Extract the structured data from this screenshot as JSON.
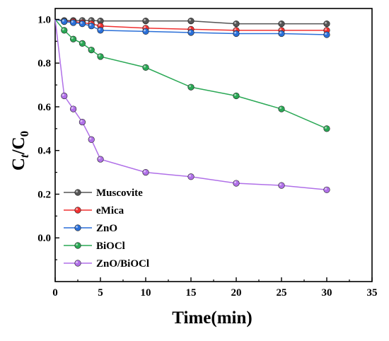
{
  "chart_data": {
    "type": "line",
    "title": "",
    "xlabel": "Time(min)",
    "ylabel_main": "C",
    "ylabel_sub1": "t",
    "ylabel_mid": "/C",
    "ylabel_sub2": "0",
    "xlim": [
      0,
      35
    ],
    "ylim": [
      -0.2,
      1.05
    ],
    "xticks": [
      0,
      5,
      10,
      15,
      20,
      25,
      30,
      35
    ],
    "yticks": [
      0.0,
      0.2,
      0.4,
      0.6,
      0.8,
      1.0
    ],
    "xtick_labels": [
      "0",
      "5",
      "10",
      "15",
      "20",
      "25",
      "30",
      "35"
    ],
    "ytick_labels": [
      "0.0",
      "0.2",
      "0.4",
      "0.6",
      "0.8",
      "1.0"
    ],
    "grid": false,
    "legend_position": "bottom-left",
    "series": [
      {
        "name": "Muscovite",
        "color": "#555555",
        "x": [
          0,
          1,
          2,
          3,
          4,
          5,
          10,
          15,
          20,
          25,
          30
        ],
        "y": [
          1.0,
          0.995,
          0.995,
          0.995,
          0.995,
          0.993,
          0.993,
          0.993,
          0.98,
          0.98,
          0.98
        ]
      },
      {
        "name": "eMica",
        "color": "#f03030",
        "x": [
          0,
          1,
          2,
          3,
          4,
          5,
          10,
          15,
          20,
          25,
          30
        ],
        "y": [
          1.0,
          0.99,
          0.99,
          0.985,
          0.98,
          0.97,
          0.96,
          0.955,
          0.95,
          0.95,
          0.95
        ]
      },
      {
        "name": "ZnO",
        "color": "#2a6fd8",
        "x": [
          0,
          1,
          2,
          3,
          4,
          5,
          10,
          15,
          20,
          25,
          30
        ],
        "y": [
          1.0,
          0.99,
          0.985,
          0.98,
          0.97,
          0.95,
          0.945,
          0.94,
          0.935,
          0.935,
          0.93
        ]
      },
      {
        "name": "BiOCl",
        "color": "#2aa855",
        "x": [
          0,
          1,
          2,
          3,
          4,
          5,
          10,
          15,
          20,
          25,
          30
        ],
        "y": [
          1.0,
          0.95,
          0.91,
          0.89,
          0.86,
          0.83,
          0.78,
          0.69,
          0.65,
          0.59,
          0.5
        ]
      },
      {
        "name": "ZnO/BiOCl",
        "color": "#b070e8",
        "x": [
          0,
          1,
          2,
          3,
          4,
          5,
          10,
          15,
          20,
          25,
          30
        ],
        "y": [
          1.0,
          0.65,
          0.59,
          0.53,
          0.45,
          0.36,
          0.3,
          0.28,
          0.25,
          0.24,
          0.22
        ]
      }
    ]
  }
}
